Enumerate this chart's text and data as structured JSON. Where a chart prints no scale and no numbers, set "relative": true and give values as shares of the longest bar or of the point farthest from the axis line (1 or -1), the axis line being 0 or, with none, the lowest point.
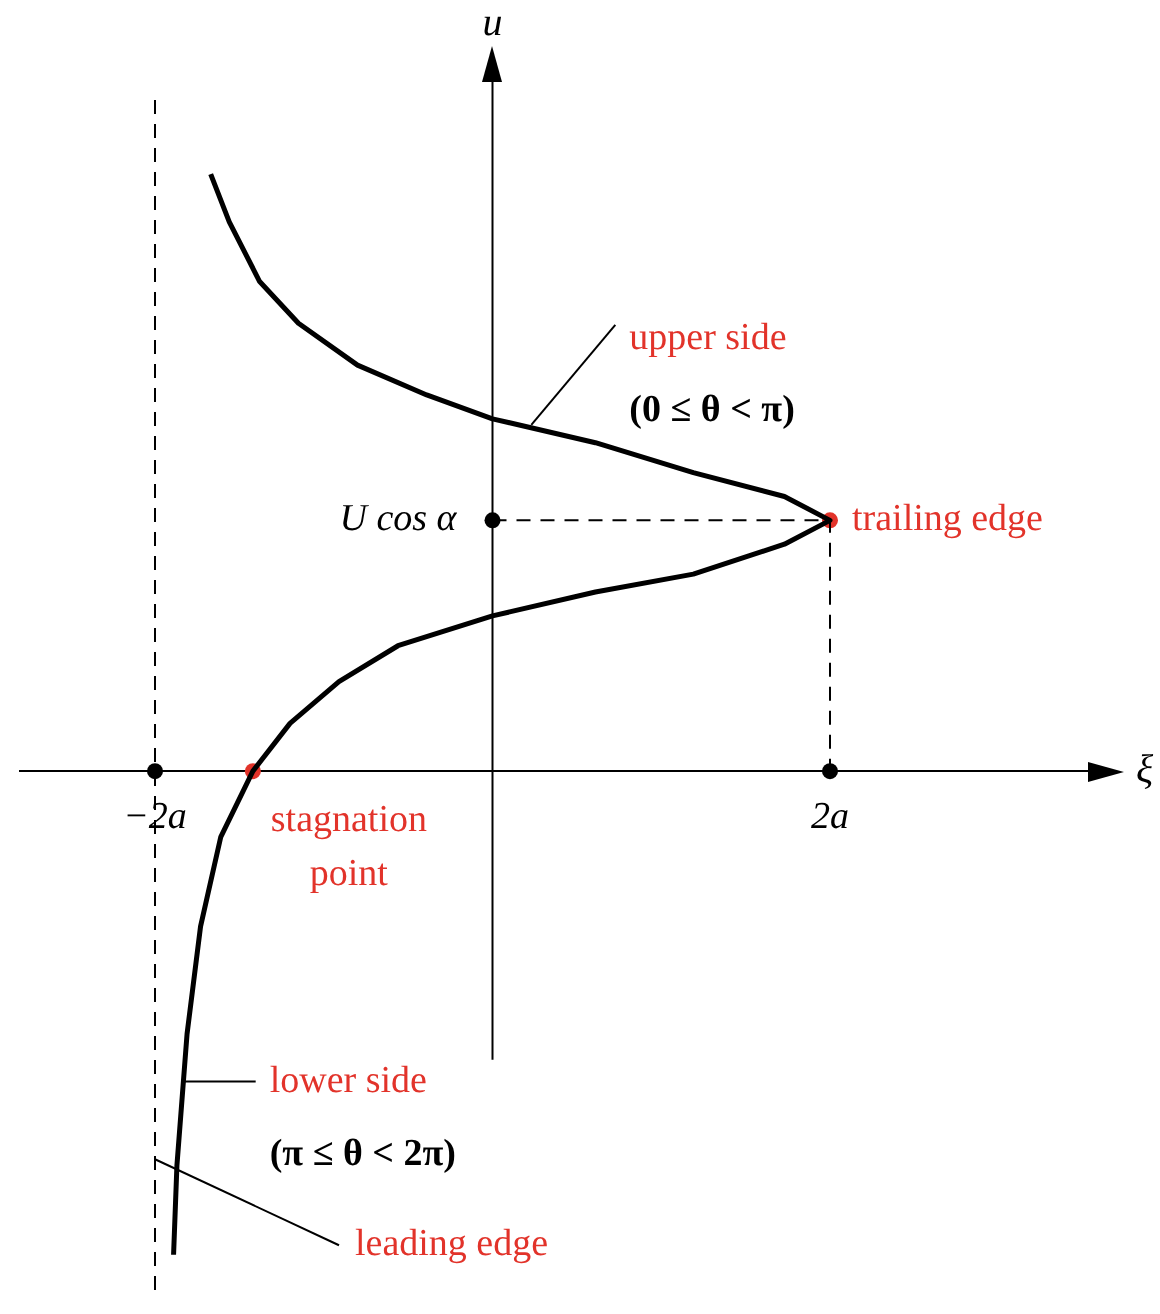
{
  "chart_data": {
    "type": "line",
    "xlabel": "ξ",
    "ylabel": "u",
    "relative": true,
    "xlim": [
      -2.8,
      3.6
    ],
    "xticks": [
      {
        "value": -2,
        "label": "−2a"
      },
      {
        "value": 2,
        "label": "2a"
      }
    ],
    "grid": false,
    "legend": false,
    "ref_lines": [
      {
        "axis": "x",
        "value": -2,
        "line_style": "dashed",
        "color": "#000000"
      }
    ],
    "series": [
      {
        "type": "line",
        "color": "#000000",
        "line_style": "solid",
        "x": [
          -1.67,
          -1.56,
          -1.38,
          -1.15,
          -0.8,
          -0.39,
          0,
          0.61,
          1.19,
          1.73,
          2,
          1.73,
          1.19,
          0.61,
          0,
          -0.56,
          -0.91,
          -1.2,
          -1.42,
          -1.61,
          -1.73,
          -1.81,
          -1.87,
          -1.89
        ],
        "values": [
          1,
          0.92,
          0.82,
          0.75,
          0.68,
          0.63,
          0.59,
          0.55,
          0.5,
          0.46,
          0.42,
          0.38,
          0.33,
          0.3,
          0.26,
          0.21,
          0.15,
          0.08,
          0,
          -0.11,
          -0.26,
          -0.44,
          -0.66,
          -0.81
        ]
      },
      {
        "type": "line",
        "color": "#000000",
        "line_style": "dashed",
        "x": [
          0,
          2,
          2
        ],
        "values": [
          0.42,
          0.42,
          0
        ]
      },
      {
        "type": "scatter",
        "marker": "circle",
        "x": [
          -2,
          0,
          2,
          2,
          -1.42
        ],
        "values": [
          0,
          0.42,
          0,
          0.42,
          0
        ],
        "colors": [
          "#000000",
          "#000000",
          "#000000",
          "#e2332a",
          "#e2332a"
        ]
      }
    ],
    "annotations": [
      {
        "text": "upper side",
        "x": 0.23,
        "y": 0.58
      },
      {
        "text": "(0 ≤ θ < π)",
        "x": 0.23,
        "y": 0.58
      },
      {
        "text": "trailing edge",
        "x": 2,
        "y": 0.42
      },
      {
        "text": "stagnation point",
        "x": -1.42,
        "y": 0
      },
      {
        "text": "lower side",
        "x": -1.83,
        "y": -0.52
      },
      {
        "text": "(π ≤ θ < 2π)",
        "x": -1.83,
        "y": -0.52
      },
      {
        "text": "leading edge",
        "x": -2,
        "y": -0.65
      },
      {
        "text": "U cos α",
        "x": 0,
        "y": 0.42
      }
    ]
  }
}
